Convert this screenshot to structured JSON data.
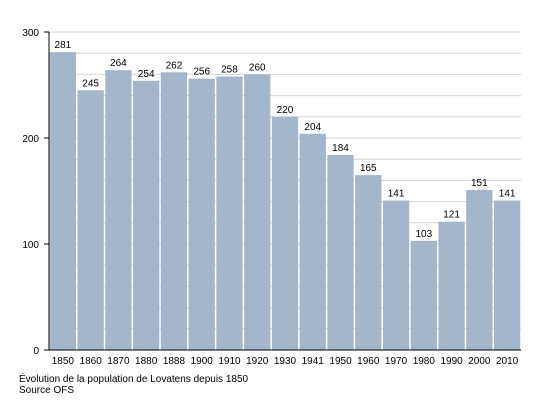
{
  "chart_data": {
    "type": "bar",
    "categories": [
      "1850",
      "1860",
      "1870",
      "1880",
      "1888",
      "1900",
      "1910",
      "1920",
      "1930",
      "1941",
      "1950",
      "1960",
      "1970",
      "1980",
      "1990",
      "2000",
      "2010"
    ],
    "values": [
      281,
      245,
      264,
      254,
      262,
      256,
      258,
      260,
      220,
      204,
      184,
      165,
      141,
      103,
      121,
      151,
      141
    ],
    "ylim": [
      0,
      300
    ],
    "yticks": [
      0,
      100,
      200,
      300
    ],
    "grid": true,
    "bar_color": "#a3b6cc",
    "title": "",
    "xlabel": "",
    "ylabel": ""
  },
  "caption": {
    "line1": "Évolution de la population de Lovatens depuis 1850",
    "line2": "Source OFS"
  }
}
